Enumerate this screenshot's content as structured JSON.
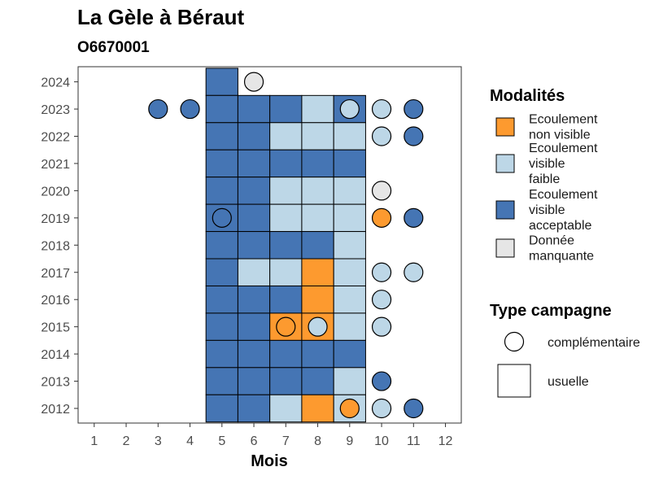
{
  "chart_data": {
    "type": "heatmap",
    "title": "La Gèle à Béraut",
    "subtitle": "O6670001",
    "xlabel": "Mois",
    "ylabel": "",
    "x_ticks": [
      "1",
      "2",
      "3",
      "4",
      "5",
      "6",
      "7",
      "8",
      "9",
      "10",
      "11",
      "12"
    ],
    "y_ticks": [
      "2012",
      "2013",
      "2014",
      "2015",
      "2016",
      "2017",
      "2018",
      "2019",
      "2020",
      "2021",
      "2022",
      "2023",
      "2024"
    ],
    "xlim": [
      0.5,
      12.5
    ],
    "ylim": [
      2011.5,
      2024.5
    ],
    "legend_modalites": {
      "title": "Modalités",
      "entries": [
        {
          "key": "nv",
          "label_lines": [
            "Ecoulement",
            "non visible"
          ],
          "color": "#FD9A2F"
        },
        {
          "key": "vf",
          "label_lines": [
            "Ecoulement",
            "visible",
            "faible"
          ],
          "color": "#BDD7E7"
        },
        {
          "key": "va",
          "label_lines": [
            "Ecoulement",
            "visible",
            "acceptable"
          ],
          "color": "#4575B4"
        },
        {
          "key": "dm",
          "label_lines": [
            "Donnée",
            "manquante"
          ],
          "color": "#E6E6E6"
        }
      ]
    },
    "legend_campagne": {
      "title": "Type campagne",
      "entries": [
        {
          "shape": "circle",
          "label": "complémentaire"
        },
        {
          "shape": "square",
          "label": "usuelle"
        }
      ]
    },
    "usuelle": [
      {
        "year": 2024,
        "month": 5,
        "m": "va"
      },
      {
        "year": 2023,
        "month": 5,
        "m": "va"
      },
      {
        "year": 2023,
        "month": 6,
        "m": "va"
      },
      {
        "year": 2023,
        "month": 7,
        "m": "va"
      },
      {
        "year": 2023,
        "month": 8,
        "m": "vf"
      },
      {
        "year": 2023,
        "month": 9,
        "m": "va"
      },
      {
        "year": 2022,
        "month": 5,
        "m": "va"
      },
      {
        "year": 2022,
        "month": 6,
        "m": "va"
      },
      {
        "year": 2022,
        "month": 7,
        "m": "vf"
      },
      {
        "year": 2022,
        "month": 8,
        "m": "vf"
      },
      {
        "year": 2022,
        "month": 9,
        "m": "vf"
      },
      {
        "year": 2021,
        "month": 5,
        "m": "va"
      },
      {
        "year": 2021,
        "month": 6,
        "m": "va"
      },
      {
        "year": 2021,
        "month": 7,
        "m": "va"
      },
      {
        "year": 2021,
        "month": 8,
        "m": "va"
      },
      {
        "year": 2021,
        "month": 9,
        "m": "va"
      },
      {
        "year": 2020,
        "month": 5,
        "m": "va"
      },
      {
        "year": 2020,
        "month": 6,
        "m": "va"
      },
      {
        "year": 2020,
        "month": 7,
        "m": "vf"
      },
      {
        "year": 2020,
        "month": 8,
        "m": "vf"
      },
      {
        "year": 2020,
        "month": 9,
        "m": "vf"
      },
      {
        "year": 2019,
        "month": 5,
        "m": "va"
      },
      {
        "year": 2019,
        "month": 6,
        "m": "va"
      },
      {
        "year": 2019,
        "month": 7,
        "m": "vf"
      },
      {
        "year": 2019,
        "month": 8,
        "m": "vf"
      },
      {
        "year": 2019,
        "month": 9,
        "m": "vf"
      },
      {
        "year": 2018,
        "month": 5,
        "m": "va"
      },
      {
        "year": 2018,
        "month": 6,
        "m": "va"
      },
      {
        "year": 2018,
        "month": 7,
        "m": "va"
      },
      {
        "year": 2018,
        "month": 8,
        "m": "va"
      },
      {
        "year": 2018,
        "month": 9,
        "m": "vf"
      },
      {
        "year": 2017,
        "month": 5,
        "m": "va"
      },
      {
        "year": 2017,
        "month": 6,
        "m": "vf"
      },
      {
        "year": 2017,
        "month": 7,
        "m": "vf"
      },
      {
        "year": 2017,
        "month": 8,
        "m": "nv"
      },
      {
        "year": 2017,
        "month": 9,
        "m": "vf"
      },
      {
        "year": 2016,
        "month": 5,
        "m": "va"
      },
      {
        "year": 2016,
        "month": 6,
        "m": "va"
      },
      {
        "year": 2016,
        "month": 7,
        "m": "va"
      },
      {
        "year": 2016,
        "month": 8,
        "m": "nv"
      },
      {
        "year": 2016,
        "month": 9,
        "m": "vf"
      },
      {
        "year": 2015,
        "month": 5,
        "m": "va"
      },
      {
        "year": 2015,
        "month": 6,
        "m": "va"
      },
      {
        "year": 2015,
        "month": 7,
        "m": "nv"
      },
      {
        "year": 2015,
        "month": 8,
        "m": "nv"
      },
      {
        "year": 2015,
        "month": 9,
        "m": "vf"
      },
      {
        "year": 2014,
        "month": 5,
        "m": "va"
      },
      {
        "year": 2014,
        "month": 6,
        "m": "va"
      },
      {
        "year": 2014,
        "month": 7,
        "m": "va"
      },
      {
        "year": 2014,
        "month": 8,
        "m": "va"
      },
      {
        "year": 2014,
        "month": 9,
        "m": "va"
      },
      {
        "year": 2013,
        "month": 5,
        "m": "va"
      },
      {
        "year": 2013,
        "month": 6,
        "m": "va"
      },
      {
        "year": 2013,
        "month": 7,
        "m": "va"
      },
      {
        "year": 2013,
        "month": 8,
        "m": "va"
      },
      {
        "year": 2013,
        "month": 9,
        "m": "vf"
      },
      {
        "year": 2012,
        "month": 5,
        "m": "va"
      },
      {
        "year": 2012,
        "month": 6,
        "m": "va"
      },
      {
        "year": 2012,
        "month": 7,
        "m": "vf"
      },
      {
        "year": 2012,
        "month": 8,
        "m": "nv"
      },
      {
        "year": 2012,
        "month": 9,
        "m": "vf"
      }
    ],
    "complementaire": [
      {
        "year": 2024,
        "month": 6,
        "m": "dm"
      },
      {
        "year": 2023,
        "month": 3,
        "m": "va"
      },
      {
        "year": 2023,
        "month": 4,
        "m": "va"
      },
      {
        "year": 2023,
        "month": 9,
        "m": "vf"
      },
      {
        "year": 2023,
        "month": 10,
        "m": "vf"
      },
      {
        "year": 2023,
        "month": 11,
        "m": "va"
      },
      {
        "year": 2022,
        "month": 10,
        "m": "vf"
      },
      {
        "year": 2022,
        "month": 11,
        "m": "va"
      },
      {
        "year": 2020,
        "month": 10,
        "m": "dm"
      },
      {
        "year": 2019,
        "month": 5,
        "m": "va"
      },
      {
        "year": 2019,
        "month": 10,
        "m": "nv"
      },
      {
        "year": 2019,
        "month": 11,
        "m": "va"
      },
      {
        "year": 2017,
        "month": 10,
        "m": "vf"
      },
      {
        "year": 2017,
        "month": 11,
        "m": "vf"
      },
      {
        "year": 2016,
        "month": 10,
        "m": "vf"
      },
      {
        "year": 2015,
        "month": 7,
        "m": "nv"
      },
      {
        "year": 2015,
        "month": 8,
        "m": "vf"
      },
      {
        "year": 2015,
        "month": 10,
        "m": "vf"
      },
      {
        "year": 2013,
        "month": 10,
        "m": "va"
      },
      {
        "year": 2012,
        "month": 9,
        "m": "nv"
      },
      {
        "year": 2012,
        "month": 10,
        "m": "vf"
      },
      {
        "year": 2012,
        "month": 11,
        "m": "va"
      }
    ]
  }
}
